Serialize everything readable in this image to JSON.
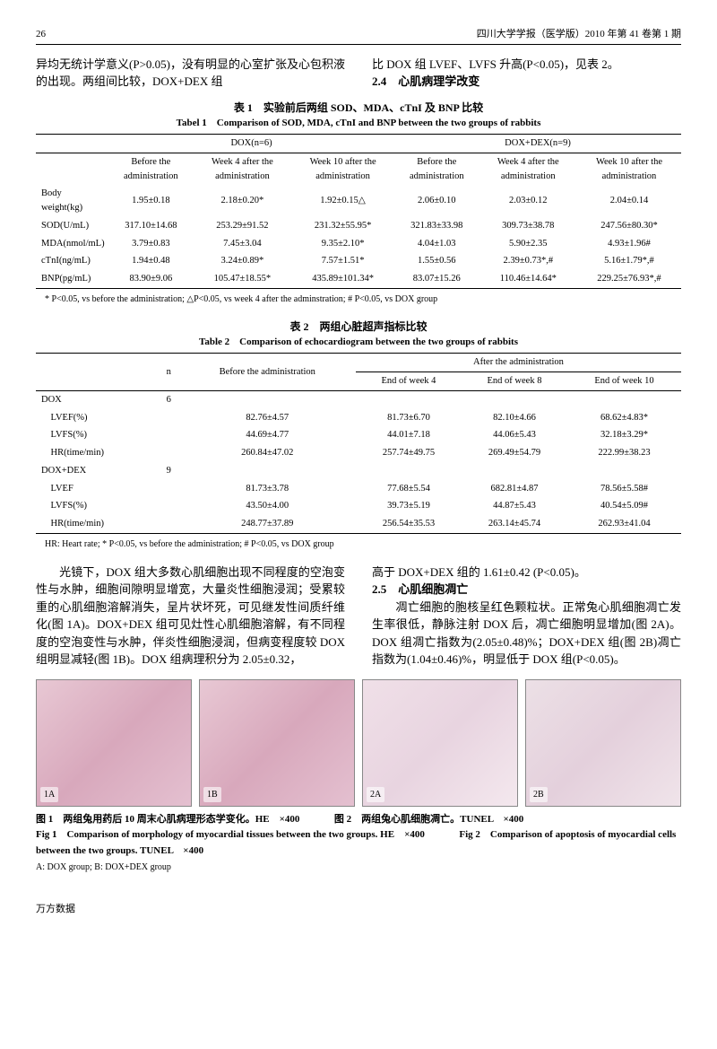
{
  "header": {
    "page_number": "26",
    "journal": "四川大学学报（医学版）2010 年第 41 卷第 1 期"
  },
  "intro": {
    "left": "异均无统计学意义(P>0.05)，没有明显的心室扩张及心包积液的出现。两组间比较，DOX+DEX 组",
    "right_line1": "比 DOX 组 LVEF、LVFS 升高(P<0.05)，见表 2。",
    "section_2_4": "2.4　心肌病理学改变"
  },
  "table1": {
    "title_cn": "表 1　实验前后两组 SOD、MDA、cTnI 及 BNP 比较",
    "title_en": "Tabel 1　Comparison of SOD, MDA, cTnI and BNP between the two groups of rabbits",
    "group1": "DOX(n=6)",
    "group2": "DOX+DEX(n=9)",
    "cols": [
      "",
      "Before the administration",
      "Week 4 after the administration",
      "Week 10 after the administration",
      "Before the administration",
      "Week 4 after the administration",
      "Week 10 after the administration"
    ],
    "rows": [
      [
        "Body weight(kg)",
        "1.95±0.18",
        "2.18±0.20*",
        "1.92±0.15△",
        "2.06±0.10",
        "2.03±0.12",
        "2.04±0.14"
      ],
      [
        "SOD(U/mL)",
        "317.10±14.68",
        "253.29±91.52",
        "231.32±55.95*",
        "321.83±33.98",
        "309.73±38.78",
        "247.56±80.30*"
      ],
      [
        "MDA(nmol/mL)",
        "3.79±0.83",
        "7.45±3.04",
        "9.35±2.10*",
        "4.04±1.03",
        "5.90±2.35",
        "4.93±1.96#"
      ],
      [
        "cTnI(ng/mL)",
        "1.94±0.48",
        "3.24±0.89*",
        "7.57±1.51*",
        "1.55±0.56",
        "2.39±0.73*,#",
        "5.16±1.79*,#"
      ],
      [
        "BNP(pg/mL)",
        "83.90±9.06",
        "105.47±18.55*",
        "435.89±101.34*",
        "83.07±15.26",
        "110.46±14.64*",
        "229.25±76.93*,#"
      ]
    ],
    "footnote": "* P<0.05, vs before the administration; △P<0.05, vs week 4 after the adminstration; # P<0.05, vs DOX group"
  },
  "table2": {
    "title_cn": "表 2　两组心脏超声指标比较",
    "title_en": "Table 2　Comparison of echocardiogram between the two groups of rabbits",
    "h_n": "n",
    "h_before": "Before the administration",
    "h_after": "After the administration",
    "h_w4": "End of week 4",
    "h_w8": "End of week 8",
    "h_w10": "End of week 10",
    "rows": [
      [
        "DOX",
        "6",
        "",
        "",
        "",
        ""
      ],
      [
        "　LVEF(%)",
        "",
        "82.76±4.57",
        "81.73±6.70",
        "82.10±4.66",
        "68.62±4.83*"
      ],
      [
        "　LVFS(%)",
        "",
        "44.69±4.77",
        "44.01±7.18",
        "44.06±5.43",
        "32.18±3.29*"
      ],
      [
        "　HR(time/min)",
        "",
        "260.84±47.02",
        "257.74±49.75",
        "269.49±54.79",
        "222.99±38.23"
      ],
      [
        "DOX+DEX",
        "9",
        "",
        "",
        "",
        ""
      ],
      [
        "　LVEF",
        "",
        "81.73±3.78",
        "77.68±5.54",
        "682.81±4.87",
        "78.56±5.58#"
      ],
      [
        "　LVFS(%)",
        "",
        "43.50±4.00",
        "39.73±5.19",
        "44.87±5.43",
        "40.54±5.09#"
      ],
      [
        "　HR(time/min)",
        "",
        "248.77±37.89",
        "256.54±35.53",
        "263.14±45.74",
        "262.93±41.04"
      ]
    ],
    "footnote": "HR: Heart rate; * P<0.05, vs before the administration; # P<0.05, vs DOX group"
  },
  "body": {
    "left": "　　光镜下，DOX 组大多数心肌细胞出现不同程度的空泡变性与水肿，细胞间隙明显增宽，大量炎性细胞浸润；受累较重的心肌细胞溶解消失，呈片状坏死，可见继发性间质纤维化(图 1A)。DOX+DEX 组可见灶性心肌细胞溶解，有不同程度的空泡变性与水肿，伴炎性细胞浸润，但病变程度较 DOX 组明显减轻(图 1B)。DOX 组病理积分为 2.05±0.32，",
    "right_line1": "高于 DOX+DEX 组的 1.61±0.42 (P<0.05)。",
    "section_2_5": "2.5　心肌细胞凋亡",
    "right_p2": "　　凋亡细胞的胞核呈红色颗粒状。正常兔心肌细胞凋亡发生率很低，静脉注射 DOX 后，凋亡细胞明显增加(图 2A)。DOX 组凋亡指数为(2.05±0.48)%；DOX+DEX 组(图 2B)凋亡指数为(1.04±0.46)%，明显低于 DOX 组(P<0.05)。"
  },
  "figures": {
    "labels": [
      "1A",
      "1B",
      "2A",
      "2B"
    ],
    "caption_cn_1": "图 1　两组兔用药后 10 周末心肌病理形态学变化。HE　×400",
    "caption_cn_2": "图 2　两组兔心肌细胞凋亡。TUNEL　×400",
    "caption_en_1": "Fig 1　Comparison of morphology of myocardial tissues between the two groups. HE　×400",
    "caption_en_2": "Fig 2　Comparison of apoptosis of myocardial cells between the two groups. TUNEL　×400",
    "caption_ab": "A: DOX group; B: DOX+DEX group"
  },
  "footer": "万方数据"
}
